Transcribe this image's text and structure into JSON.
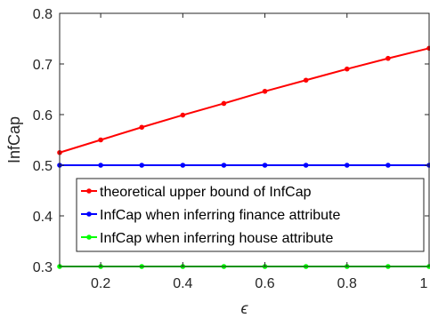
{
  "chart_data": {
    "type": "line",
    "xlabel": "ϵ",
    "ylabel": "InfCap",
    "xlim": [
      0.1,
      1.0
    ],
    "ylim": [
      0.3,
      0.8
    ],
    "xticks": [
      0.2,
      0.4,
      0.6,
      0.8,
      1
    ],
    "xtick_labels": [
      "0.2",
      "0.4",
      "0.6",
      "0.8",
      "1"
    ],
    "yticks": [
      0.3,
      0.4,
      0.5,
      0.6,
      0.7,
      0.8
    ],
    "ytick_labels": [
      "0.3",
      "0.4",
      "0.5",
      "0.6",
      "0.7",
      "0.8"
    ],
    "grid": false,
    "legend_position": "lower-right",
    "x": [
      0.1,
      0.2,
      0.3,
      0.4,
      0.5,
      0.6,
      0.7,
      0.8,
      0.9,
      1.0
    ],
    "series": [
      {
        "name": "theoretical upper bound of InfCap",
        "color": "#ff0000",
        "marker": "dot",
        "values": [
          0.525,
          0.55,
          0.575,
          0.599,
          0.622,
          0.646,
          0.668,
          0.69,
          0.711,
          0.731
        ]
      },
      {
        "name": "InfCap when inferring finance attribute",
        "color": "#0000ff",
        "marker": "dot",
        "values": [
          0.5,
          0.5,
          0.5,
          0.5,
          0.5,
          0.5,
          0.5,
          0.5,
          0.5,
          0.5
        ]
      },
      {
        "name": "InfCap when inferring house attribute",
        "color": "#00ff00",
        "marker": "dot",
        "values": [
          0.3,
          0.3,
          0.3,
          0.3,
          0.3,
          0.3,
          0.3,
          0.3,
          0.3,
          0.3
        ]
      }
    ]
  }
}
